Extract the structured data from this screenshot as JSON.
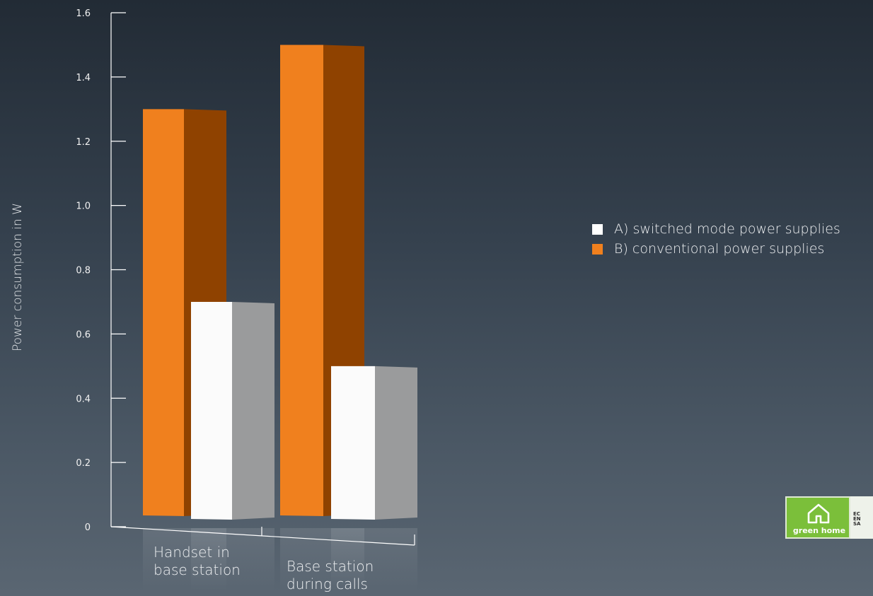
{
  "chart_data": {
    "type": "bar",
    "title": "",
    "ylabel": "Power consumption in W",
    "xlabel": "",
    "categories": [
      [
        "Handset in",
        "base station"
      ],
      [
        "Base station",
        "during calls"
      ]
    ],
    "series": [
      {
        "name": "A) switched mode power supplies",
        "values": [
          0.7,
          0.5
        ],
        "color": "#ffffff"
      },
      {
        "name": "B) conventional power supplies",
        "values": [
          1.3,
          1.5
        ],
        "color": "#f0801e"
      }
    ],
    "ylim": [
      0,
      1.6
    ],
    "yticks": [
      0,
      0.2,
      0.4,
      0.6,
      0.8,
      1.0,
      1.2,
      1.4,
      1.6
    ],
    "ytick_labels": [
      "0",
      "0.2",
      "0.4",
      "0.6",
      "0.8",
      "1.0",
      "1.2",
      "1.4",
      "1.6"
    ],
    "grid": false,
    "legend_position": "right"
  },
  "badge": {
    "label": "green home",
    "side_text": [
      "EC",
      "EN",
      "SA"
    ],
    "color": "#7bbf3a"
  }
}
